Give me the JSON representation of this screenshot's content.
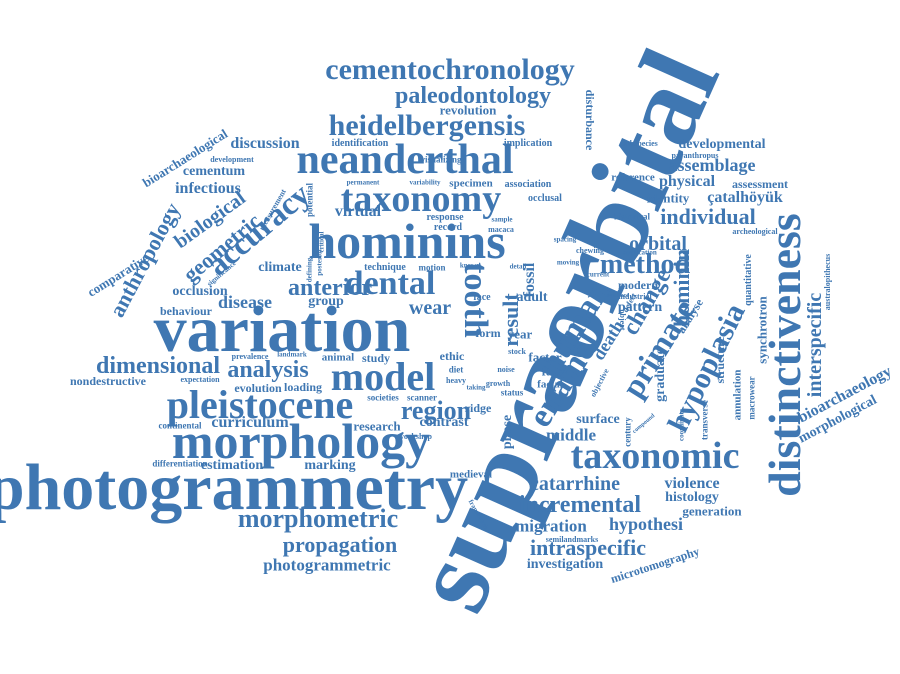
{
  "palette": {
    "word": "#3f77b2",
    "background": "#ffffff"
  },
  "words": {
    "supraorbital": "supraorbital",
    "variation": "variation",
    "photogrammetry": "photogrammetry",
    "morphology": "morphology",
    "hominins": "hominins",
    "neanderthal": "neanderthal",
    "distinctiveness": "distinctiveness",
    "pleistocene": "pleistocene",
    "taxonomy": "taxonomy",
    "taxonomic": "taxonomic",
    "cementochronology": "cementochronology",
    "heidelbergensis": "heidelbergensis",
    "paleodontology": "paleodontology",
    "model": "model",
    "dental": "dental",
    "enamel": "enamel",
    "human": "human",
    "primate": "primate",
    "hypoplasia": "hypoplasia",
    "method": "method",
    "morphometric": "morphometric",
    "incremental": "incremental",
    "catarrhine": "catarrhine",
    "dimensional": "dimensional",
    "analysis": "analysis",
    "region": "region",
    "propagation": "propagation",
    "intraspecific": "intraspecific",
    "photogrammetric": "photogrammetric",
    "anterior": "anterior",
    "accuracy": "accuracy",
    "geometric": "geometric",
    "biological": "biological",
    "anthropology": "anthropology",
    "tooth": "tooth",
    "individual": "individual",
    "interspecific": "interspecific",
    "hominin": "hominin",
    "change": "change",
    "bioarchaeology": "bioarchaeology",
    "morphological": "morphological",
    "microtomography": "microtomography",
    "bioarchaeological": "bioarchaeological",
    "revolution": "revolution",
    "discussion": "discussion",
    "cementum": "cementum",
    "infectious": "infectious",
    "development": "development",
    "identification": "identification",
    "implication": "implication",
    "disturbance": "disturbance",
    "subspecies": "subspecies",
    "developmental": "developmental",
    "paranthropus": "paranthropus",
    "assemblage": "assemblage",
    "physical": "physical",
    "assessment": "assessment",
    "identity": "identity",
    "catalhoyuk": "çatalhöyük",
    "orbital": "orbital",
    "reference": "reference",
    "archeological": "archeological",
    "quantitative": "quantitative",
    "australopithecus": "australopithecus",
    "synchrotron": "synchrotron",
    "graduate": "graduate",
    "structure": "structure",
    "annulation": "annulation",
    "macrowear": "macrowear",
    "transverse": "transverse",
    "century": "century",
    "coordinate": "coordinate",
    "surface": "surface",
    "middle": "middle",
    "violence": "violence",
    "histology": "histology",
    "generation": "generation",
    "hypothesi": "hypothesi",
    "migration": "migration",
    "investigation": "investigation",
    "semilandmarks": "semilandmarks",
    "framework": "framework",
    "medieval": "medieval",
    "contrast": "contrast",
    "research": "research",
    "curriculum": "curriculum",
    "workshop": "workshop",
    "marking": "marking",
    "estimation": "estimation",
    "differentiation": "differentiation",
    "continental": "continental",
    "evolution": "evolution",
    "loading": "loading",
    "societies": "societies",
    "scanner": "scanner",
    "ridge": "ridge",
    "nondestructive": "nondestructive",
    "expectation": "expectation",
    "prevalence": "prevalence",
    "landmark": "landmark",
    "animal": "animal",
    "study": "study",
    "ethic": "ethic",
    "disease": "disease",
    "group": "group",
    "wear": "wear",
    "behaviour": "behaviour",
    "occlusion": "occlusion",
    "climate": "climate",
    "comparative": "comparative",
    "significance": "significance",
    "technique": "technique",
    "motion": "motion",
    "fossil": "fossil",
    "result": "result",
    "adult": "adult",
    "year": "year",
    "form": "form",
    "factor": "factor",
    "facet": "facet",
    "facial": "facial",
    "status": "status",
    "phase": "phase",
    "death": "death",
    "pattern": "pattern",
    "modern": "modern",
    "industrial": "industrial",
    "analyse": "analyse",
    "virtual": "virtual",
    "potential": "potential",
    "measurement": "measurement",
    "permanent": "permanent",
    "variability": "variability",
    "specimen": "specimen",
    "association": "association",
    "occlusal": "occlusal",
    "response": "response",
    "record": "record",
    "sample": "sample",
    "macaca": "macaca",
    "historical": "historical",
    "spacing": "spacing",
    "chewing": "chewing",
    "application": "application",
    "visualizing": "visualizing",
    "defining": "defining",
    "posterior": "posterior",
    "critical": "critical",
    "noise": "noise",
    "growth": "growth",
    "diet": "diet",
    "stock": "stock",
    "heavy": "heavy",
    "taking": "taking",
    "face": "face",
    "detail": "detail",
    "current": "current",
    "defect": "defect",
    "evidence": "evidence",
    "object": "object",
    "compound": "compound",
    "objective": "objective",
    "known": "known",
    "moving": "moving"
  }
}
